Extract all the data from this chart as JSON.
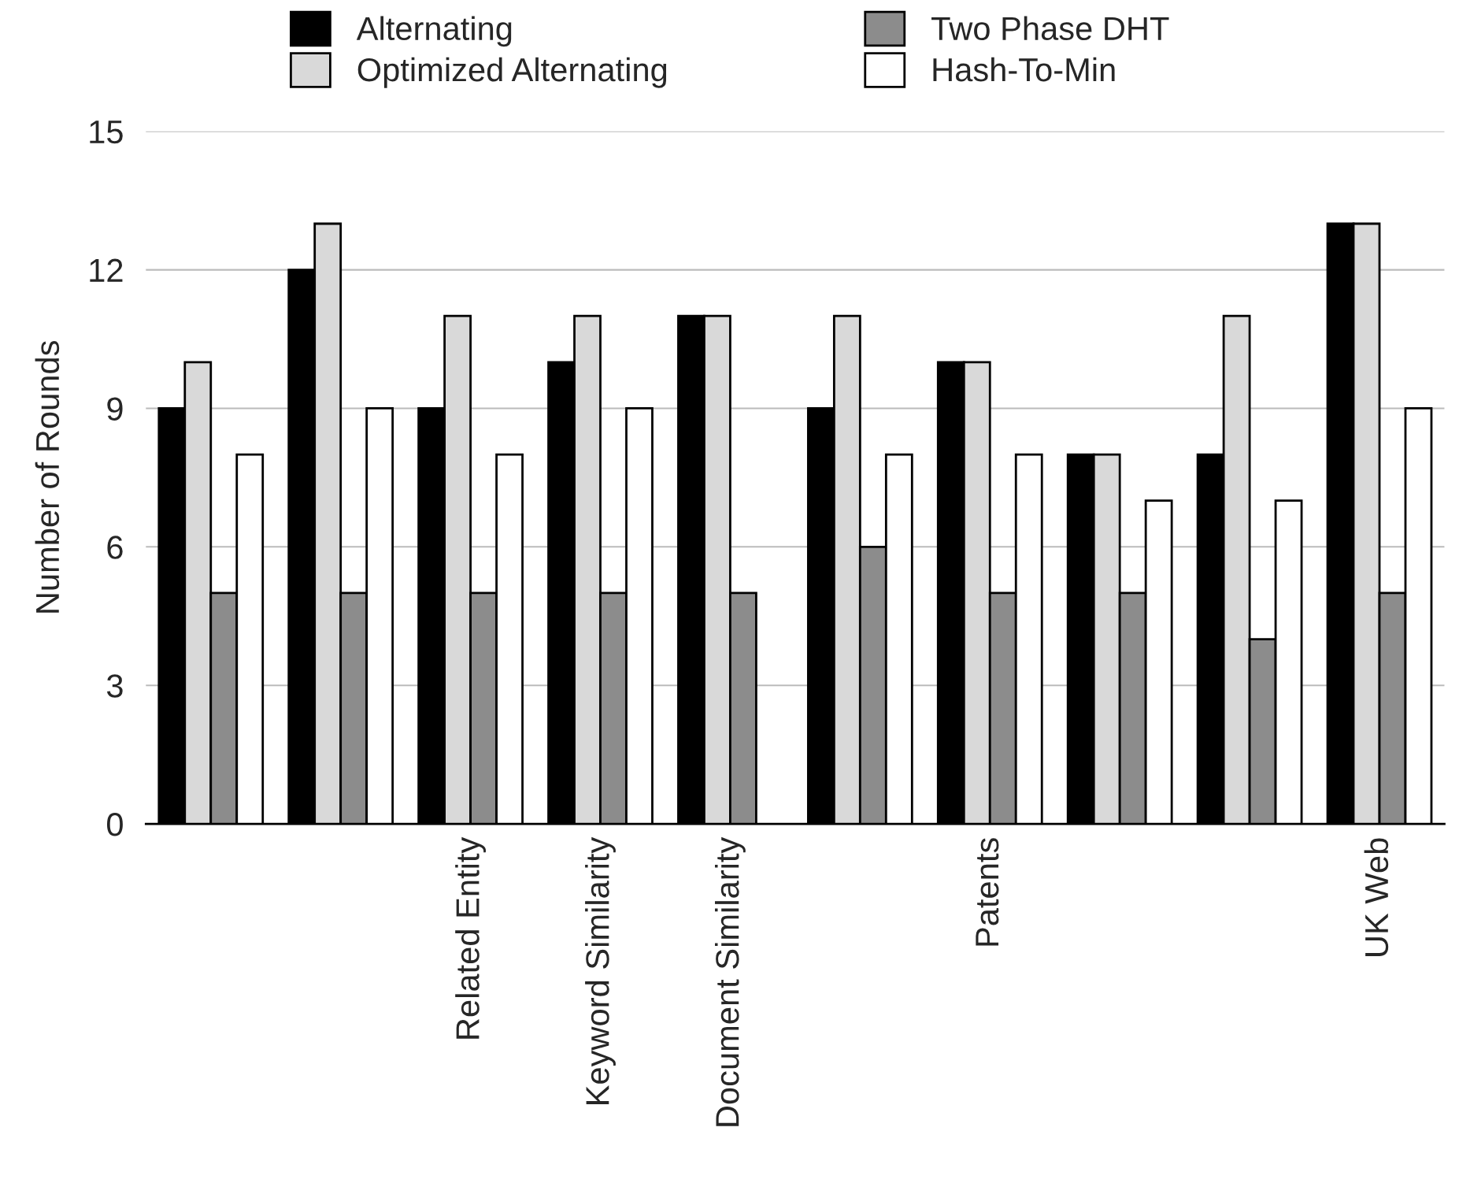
{
  "chart_data": {
    "type": "bar",
    "ylabel": "Number of Rounds",
    "categories": [
      null,
      null,
      "Related Entity",
      "Keyword Similarity",
      "Document Similarity",
      null,
      "Patents",
      null,
      null,
      "UK Web"
    ],
    "series": [
      {
        "name": "Alternating",
        "color": "#000000",
        "values": [
          9,
          12,
          9,
          10,
          11,
          9,
          10,
          8,
          8,
          13
        ]
      },
      {
        "name": "Optimized Alternating",
        "color": "#d9d9d9",
        "values": [
          10,
          13,
          11,
          11,
          11,
          11,
          10,
          8,
          11,
          13
        ]
      },
      {
        "name": "Two Phase DHT",
        "color": "#8c8c8c",
        "values": [
          5,
          5,
          5,
          5,
          5,
          6,
          5,
          5,
          4,
          5
        ]
      },
      {
        "name": "Hash-To-Min",
        "color": "#ffffff",
        "values": [
          8,
          9,
          8,
          9,
          null,
          8,
          8,
          7,
          7,
          9
        ]
      }
    ],
    "ylim": [
      0,
      15
    ],
    "yticks": [
      0,
      3,
      6,
      9,
      12,
      15
    ],
    "grid": "y",
    "legend": "top"
  }
}
